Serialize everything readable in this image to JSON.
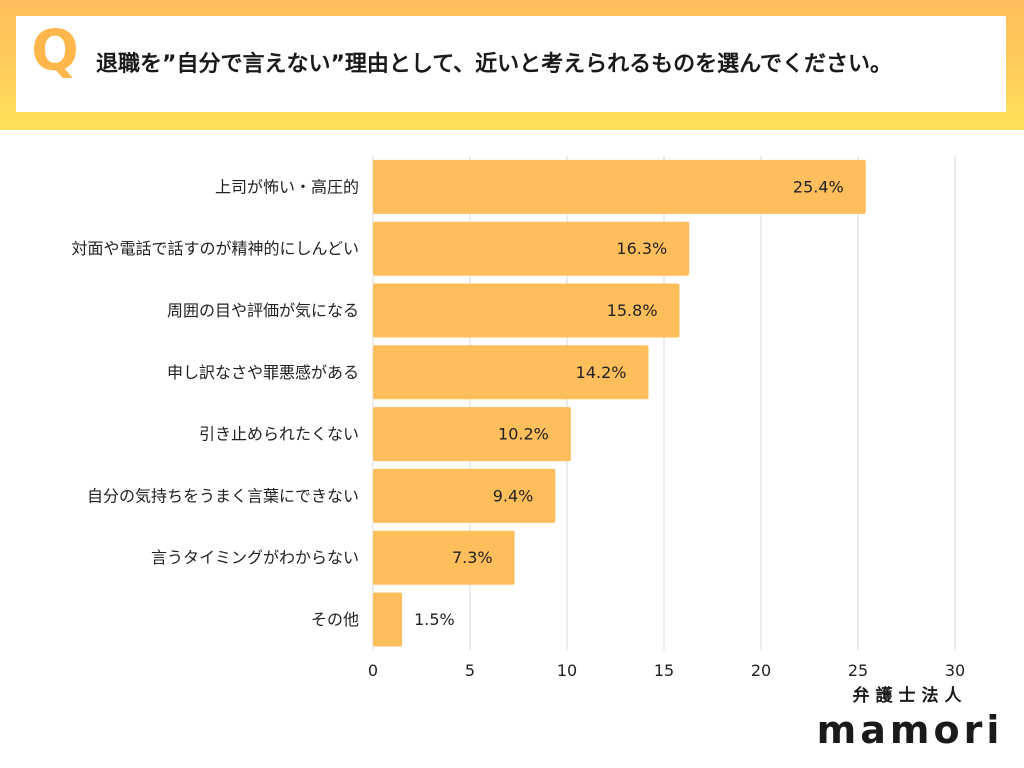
{
  "question": {
    "marker": "Q",
    "text": "退職を”自分で言えない”理由として、近いと考えられるものを選んでください。"
  },
  "brand": {
    "sub": "弁護士法人",
    "main": "mamori"
  },
  "colors": {
    "bar": "#ffbe5c",
    "grid": "#d9d9d9",
    "q_marker": "#ffb64a"
  },
  "chart_data": {
    "type": "bar",
    "orientation": "horizontal",
    "categories": [
      "上司が怖い・高圧的",
      "対面や電話で話すのが精神的にしんどい",
      "周囲の目や評価が気になる",
      "申し訳なさや罪悪感がある",
      "引き止められたくない",
      "自分の気持ちをうまく言葉にできない",
      "言うタイミングがわからない",
      "その他"
    ],
    "values": [
      25.4,
      16.3,
      15.8,
      14.2,
      10.2,
      9.4,
      7.3,
      1.5
    ],
    "value_labels": [
      "25.4%",
      "16.3%",
      "15.8%",
      "14.2%",
      "10.2%",
      "9.4%",
      "7.3%",
      "1.5%"
    ],
    "xlim": [
      0,
      30
    ],
    "x_ticks": [
      "0",
      "5",
      "10",
      "15",
      "20",
      "25",
      "30"
    ],
    "grid": true,
    "legend": false
  }
}
